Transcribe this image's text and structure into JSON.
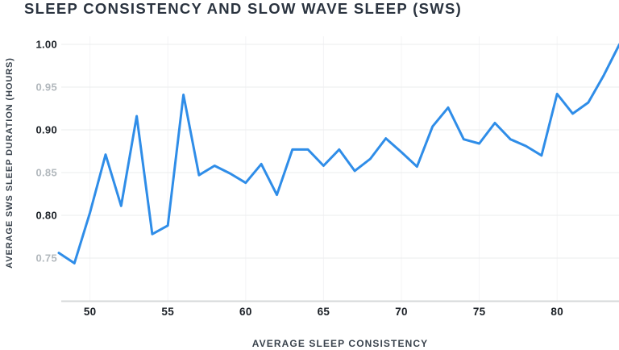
{
  "header": {
    "title": "SLEEP CONSISTENCY AND SLOW WAVE SLEEP (SWS)"
  },
  "chart_data": {
    "type": "line",
    "title": "SLEEP CONSISTENCY AND SLOW WAVE SLEEP (SWS)",
    "xlabel": "AVERAGE SLEEP CONSISTENCY",
    "ylabel": "AVERAGE SWS SLEEP DURATION (HOURS)",
    "x": [
      48,
      49,
      50,
      51,
      52,
      53,
      54,
      55,
      56,
      57,
      58,
      59,
      60,
      61,
      62,
      63,
      64,
      65,
      66,
      67,
      68,
      69,
      70,
      71,
      72,
      73,
      74,
      75,
      76,
      77,
      78,
      79,
      80,
      81,
      82,
      83,
      84
    ],
    "values": [
      0.756,
      0.744,
      0.803,
      0.871,
      0.811,
      0.916,
      0.778,
      0.788,
      0.941,
      0.847,
      0.858,
      0.849,
      0.838,
      0.86,
      0.824,
      0.877,
      0.877,
      0.858,
      0.877,
      0.852,
      0.866,
      0.89,
      0.874,
      0.857,
      0.904,
      0.926,
      0.889,
      0.884,
      0.908,
      0.889,
      0.881,
      0.87,
      0.942,
      0.919,
      0.932,
      0.964,
      1.0
    ],
    "x_ticks": [
      50,
      55,
      60,
      65,
      70,
      75,
      80
    ],
    "y_ticks": [
      0.75,
      0.8,
      0.85,
      0.9,
      0.95,
      1.0
    ],
    "xlim": [
      48,
      84.2
    ],
    "ylim": [
      0.7,
      1.01
    ],
    "grid": true,
    "legend": false,
    "series_name": "Average SWS sleep duration",
    "line_color": "#2f8de8",
    "grid_color": "#ebecee",
    "vgrid_color": "#f4f4f6",
    "axis_line_color": "#d6d8da",
    "tick_dark_color": "#1b2026",
    "tick_light_color": "#b2b8bd"
  }
}
